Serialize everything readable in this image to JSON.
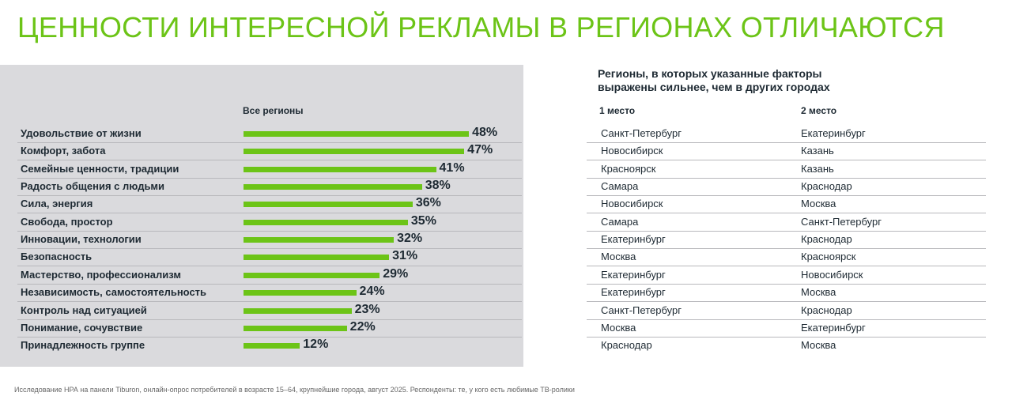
{
  "title": "ЦЕННОСТИ ИНТЕРЕСНОЙ РЕКЛАМЫ В РЕГИОНАХ ОТЛИЧАЮТСЯ",
  "right_header": "Регионы, в которых указанные факторы выражены сильнее, чем в других городах",
  "col1": "1 место",
  "col2": "2 место",
  "footnote": "Исследование НРА на панели Tiburon, онлайн-опрос потребителей в возрасте 15–64, крупнейшие города, август 2025. Респонденты: те, у кого есть любимые ТВ-ролики",
  "colors": {
    "accent": "#6cc417",
    "panel": "#dadadd"
  },
  "chart_data": {
    "type": "bar",
    "orientation": "horizontal",
    "series_label": "Все регионы",
    "unit": "%",
    "categories": [
      "Удовольствие от жизни",
      "Комфорт, забота",
      "Семейные ценности, традиции",
      "Радость общения с людьми",
      "Сила, энергия",
      "Свобода, простор",
      "Инновации, технологии",
      "Безопасность",
      "Мастерство, профессионализм",
      "Независимость, самостоятельность",
      "Контроль над ситуацией",
      "Понимание, сочувствие",
      "Принадлежность группе"
    ],
    "values": [
      48,
      47,
      41,
      38,
      36,
      35,
      32,
      31,
      29,
      24,
      23,
      22,
      12
    ],
    "value_labels": [
      "48%",
      "47%",
      "41%",
      "38%",
      "36%",
      "35%",
      "32%",
      "31%",
      "29%",
      "24%",
      "23%",
      "22%",
      "12%"
    ],
    "first_place": [
      "Санкт-Петербург",
      "Новосибирск",
      "Красноярск",
      "Самара",
      "Новосибирск",
      "Самара",
      "Екатеринбург",
      "Москва",
      "Екатеринбург",
      "Екатеринбург",
      "Санкт-Петербург",
      "Москва",
      "Краснодар"
    ],
    "second_place": [
      "Екатеринбург",
      "Казань",
      "Казань",
      "Краснодар",
      "Москва",
      "Санкт-Петербург",
      "Краснодар",
      "Красноярск",
      "Новосибирск",
      "Москва",
      "Краснодар",
      "Екатеринбург",
      "Москва"
    ]
  }
}
